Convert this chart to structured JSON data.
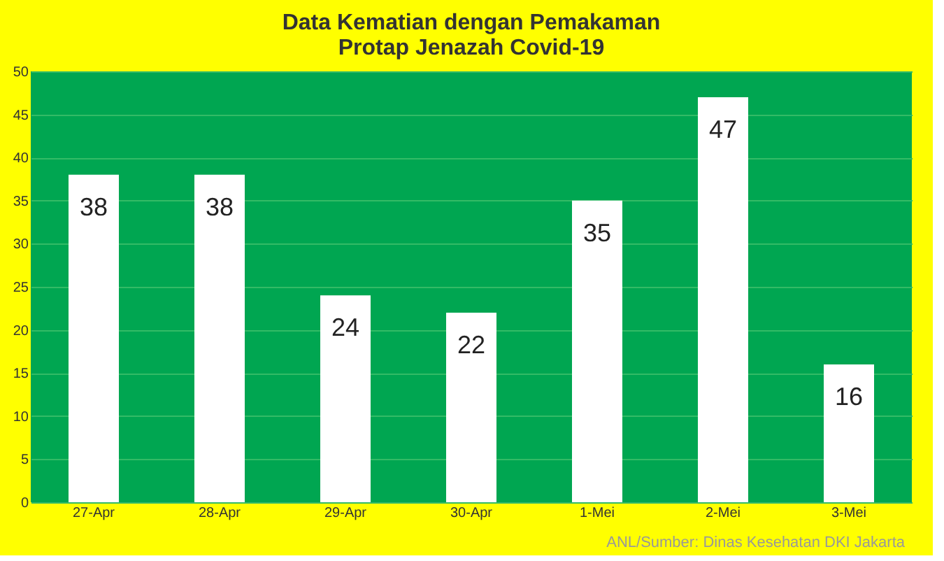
{
  "chart_data": {
    "type": "bar",
    "title": [
      "Data Kematian dengan Pemakaman",
      "Protap Jenazah Covid-19"
    ],
    "categories": [
      "27-Apr",
      "28-Apr",
      "29-Apr",
      "30-Apr",
      "1-Mei",
      "2-Mei",
      "3-Mei"
    ],
    "values": [
      38,
      38,
      24,
      22,
      35,
      47,
      16
    ],
    "color": "#ffffff",
    "data_labels": true,
    "ylim": [
      0,
      50
    ],
    "yticks": [
      0,
      5,
      10,
      15,
      20,
      25,
      30,
      35,
      40,
      45,
      50
    ],
    "grid": "y",
    "annotations": [
      "ANL/Sumber: Dinas Kesehatan DKI Jakarta"
    ]
  }
}
